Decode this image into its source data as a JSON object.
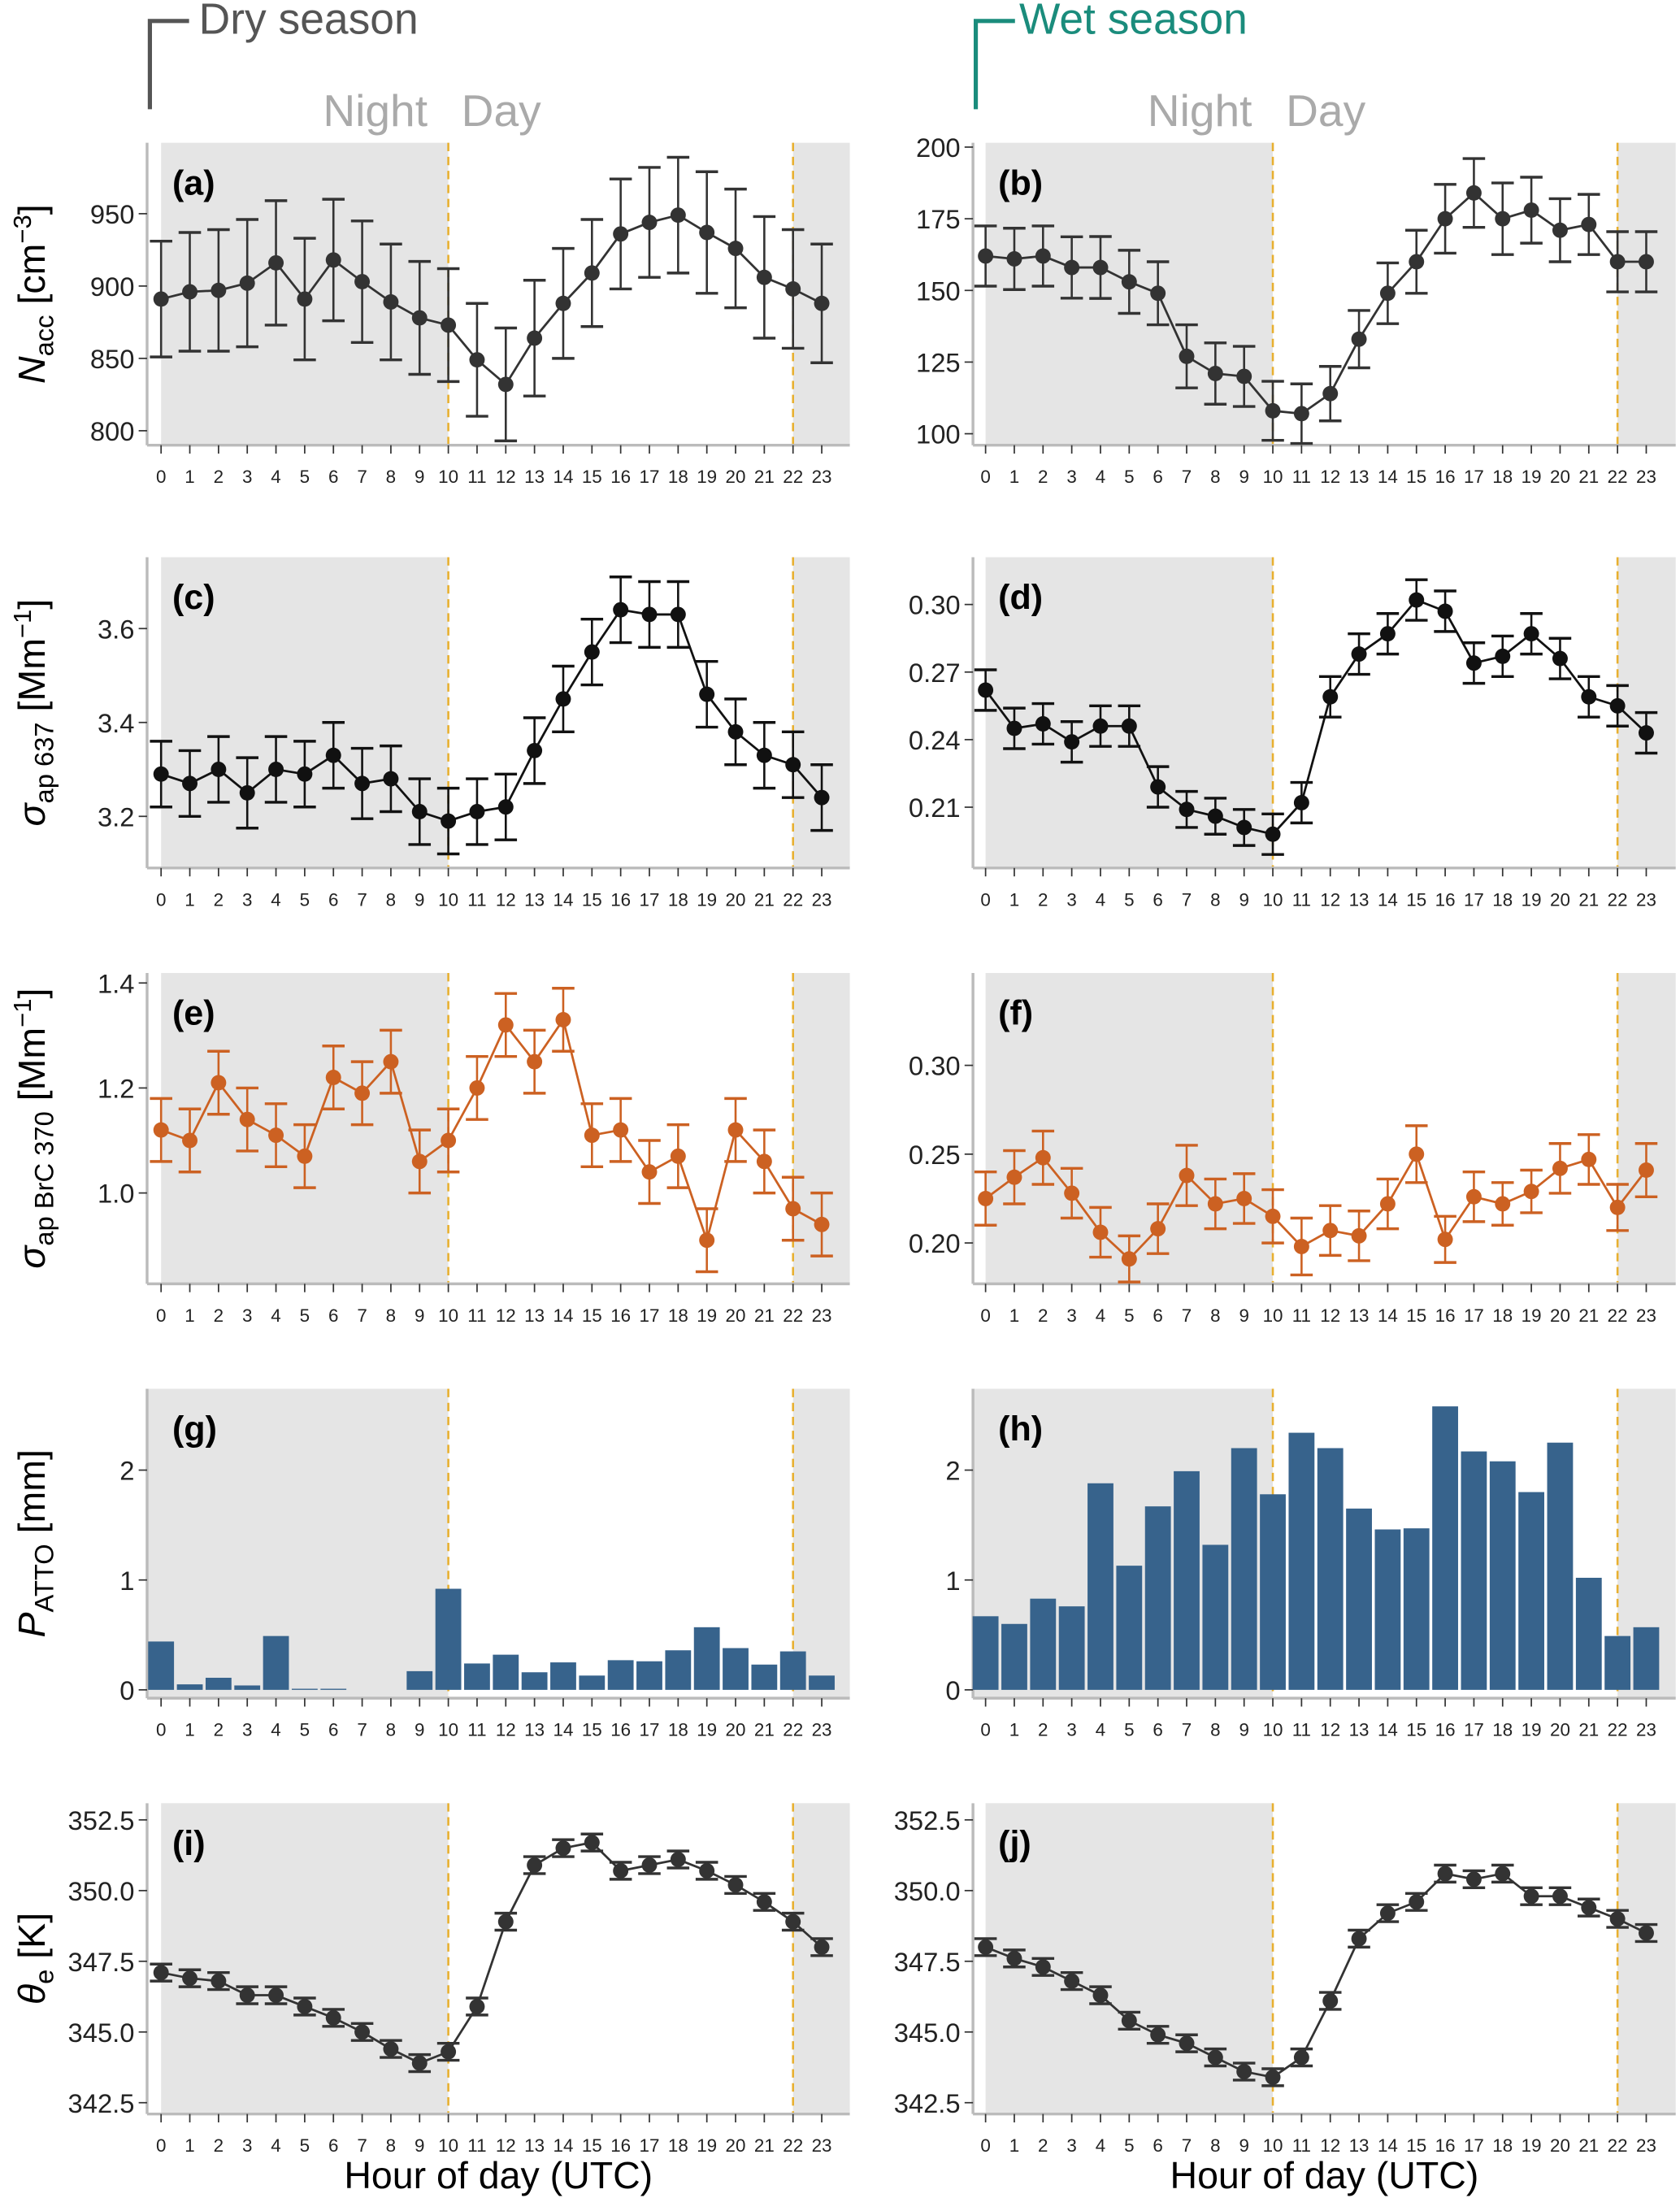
{
  "header": {
    "dry": "Dry season",
    "wet": "Wet season",
    "night": "Night",
    "day": "Day",
    "dry_color": "#555555",
    "wet_color": "#1a8c7c"
  },
  "xlabel": "Hour of day (UTC)",
  "chart_data": [
    {
      "id": "a",
      "label": "(a)",
      "type": "line",
      "column": "dry",
      "row": 0,
      "color": "#333333",
      "ylim": [
        790,
        999
      ],
      "yticks": [
        "800",
        "850",
        "900",
        "950"
      ],
      "ylabel": {
        "main": "N",
        "sub": "acc",
        "unit": " [cm",
        "sup": "−3",
        "end": "]"
      },
      "x": [
        0,
        1,
        2,
        3,
        4,
        5,
        6,
        7,
        8,
        9,
        10,
        11,
        12,
        13,
        14,
        15,
        16,
        17,
        18,
        19,
        20,
        21,
        22,
        23
      ],
      "values": [
        891,
        896,
        897,
        902,
        916,
        891,
        918,
        903,
        889,
        878,
        873,
        849,
        832,
        864,
        888,
        909,
        936,
        944,
        949,
        937,
        926,
        906,
        898,
        888
      ],
      "errors": [
        40,
        41,
        42,
        44,
        43,
        42,
        42,
        42,
        40,
        39,
        39,
        39,
        39,
        40,
        38,
        37,
        38,
        38,
        40,
        42,
        41,
        42,
        41,
        41
      ]
    },
    {
      "id": "b",
      "label": "(b)",
      "type": "line",
      "column": "wet",
      "row": 0,
      "color": "#333333",
      "ylim": [
        96,
        201.5
      ],
      "yticks": [
        "100",
        "125",
        "150",
        "175",
        "200"
      ],
      "values": [
        162,
        161,
        162,
        158,
        158,
        153,
        149,
        127,
        121,
        120,
        108,
        107,
        114,
        133,
        149,
        160,
        175,
        184,
        175,
        178,
        171,
        173,
        160,
        160
      ],
      "errors": [
        10.5,
        10.7,
        10.5,
        10.7,
        10.8,
        11,
        11,
        11,
        10.7,
        10.5,
        10.3,
        10.4,
        9.5,
        10,
        10.6,
        11,
        12,
        12,
        12.5,
        11.5,
        11,
        10.5,
        10.5,
        10.5
      ]
    },
    {
      "id": "c",
      "label": "(c)",
      "type": "line",
      "column": "dry",
      "row": 1,
      "color": "#111111",
      "ylim": [
        3.09,
        3.752
      ],
      "yticks": [
        "3.2",
        "3.4",
        "3.6"
      ],
      "ylabel": {
        "main": "σ",
        "sub": "ap 637",
        "unit": " [Mm",
        "sup": "−1",
        "end": "]"
      },
      "values": [
        3.29,
        3.27,
        3.3,
        3.25,
        3.3,
        3.29,
        3.33,
        3.27,
        3.28,
        3.21,
        3.19,
        3.21,
        3.22,
        3.34,
        3.45,
        3.55,
        3.64,
        3.63,
        3.63,
        3.46,
        3.38,
        3.33,
        3.31,
        3.24
      ],
      "errors": [
        0.07,
        0.07,
        0.07,
        0.075,
        0.07,
        0.07,
        0.07,
        0.075,
        0.07,
        0.07,
        0.07,
        0.07,
        0.07,
        0.07,
        0.07,
        0.07,
        0.07,
        0.07,
        0.07,
        0.07,
        0.07,
        0.07,
        0.07,
        0.07
      ]
    },
    {
      "id": "d",
      "label": "(d)",
      "type": "line",
      "column": "wet",
      "row": 1,
      "color": "#111111",
      "ylim": [
        0.183,
        0.321
      ],
      "yticks": [
        "0.21",
        "0.24",
        "0.27",
        "0.30"
      ],
      "values": [
        0.262,
        0.245,
        0.247,
        0.239,
        0.246,
        0.246,
        0.219,
        0.209,
        0.206,
        0.201,
        0.198,
        0.212,
        0.259,
        0.278,
        0.287,
        0.302,
        0.297,
        0.274,
        0.277,
        0.287,
        0.276,
        0.259,
        0.255,
        0.243
      ],
      "errors": [
        0.009,
        0.009,
        0.009,
        0.009,
        0.009,
        0.009,
        0.009,
        0.008,
        0.008,
        0.008,
        0.009,
        0.009,
        0.009,
        0.009,
        0.009,
        0.009,
        0.009,
        0.009,
        0.009,
        0.009,
        0.009,
        0.009,
        0.009,
        0.009
      ]
    },
    {
      "id": "e",
      "label": "(e)",
      "type": "line",
      "column": "dry",
      "row": 2,
      "color": "#cc6122",
      "ylim": [
        0.827,
        1.419
      ],
      "yticks": [
        "1.0",
        "1.2",
        "1.4"
      ],
      "ylabel": {
        "main": "σ",
        "sub": "ap BrC 370",
        "unit": " [Mm",
        "sup": "−1",
        "end": "]"
      },
      "values": [
        1.12,
        1.1,
        1.21,
        1.14,
        1.11,
        1.07,
        1.22,
        1.19,
        1.25,
        1.06,
        1.1,
        1.2,
        1.32,
        1.25,
        1.33,
        1.11,
        1.12,
        1.04,
        1.07,
        0.91,
        1.12,
        1.06,
        0.97,
        0.94
      ],
      "errors": [
        0.06,
        0.06,
        0.06,
        0.06,
        0.06,
        0.06,
        0.06,
        0.06,
        0.06,
        0.06,
        0.06,
        0.06,
        0.06,
        0.06,
        0.06,
        0.06,
        0.06,
        0.06,
        0.06,
        0.06,
        0.06,
        0.06,
        0.06,
        0.06
      ]
    },
    {
      "id": "f",
      "label": "(f)",
      "type": "line",
      "column": "wet",
      "row": 2,
      "color": "#cc6122",
      "ylim": [
        0.177,
        0.352
      ],
      "yticks": [
        "0.20",
        "0.25",
        "0.30"
      ],
      "values": [
        0.225,
        0.237,
        0.248,
        0.228,
        0.206,
        0.191,
        0.208,
        0.238,
        0.222,
        0.225,
        0.215,
        0.198,
        0.207,
        0.204,
        0.222,
        0.25,
        0.202,
        0.226,
        0.222,
        0.229,
        0.242,
        0.247,
        0.22,
        0.241
      ],
      "errors": [
        0.015,
        0.015,
        0.015,
        0.014,
        0.014,
        0.013,
        0.014,
        0.017,
        0.014,
        0.014,
        0.015,
        0.016,
        0.014,
        0.014,
        0.014,
        0.016,
        0.013,
        0.014,
        0.012,
        0.012,
        0.014,
        0.014,
        0.013,
        0.015
      ]
    },
    {
      "id": "g",
      "label": "(g)",
      "type": "bar",
      "column": "dry",
      "row": 3,
      "color": "#37638c",
      "ylim": [
        -0.076,
        2.74
      ],
      "yticks": [
        "0",
        "1",
        "2"
      ],
      "ylabel": {
        "main": "P",
        "sub": "ATTO",
        "unit": " [mm]",
        "sup": "",
        "end": ""
      },
      "values": [
        0.44,
        0.05,
        0.11,
        0.04,
        0.49,
        0.01,
        0.01,
        0,
        0,
        0.17,
        0.92,
        0.24,
        0.32,
        0.16,
        0.25,
        0.13,
        0.27,
        0.26,
        0.36,
        0.57,
        0.38,
        0.23,
        0.35,
        0.13
      ]
    },
    {
      "id": "h",
      "label": "(h)",
      "type": "bar",
      "column": "wet",
      "row": 3,
      "color": "#37638c",
      "ylim": [
        -0.076,
        2.74
      ],
      "yticks": [
        "0",
        "1",
        "2"
      ],
      "values": [
        0.67,
        0.6,
        0.83,
        0.76,
        1.88,
        1.13,
        1.67,
        1.99,
        1.32,
        2.2,
        1.78,
        2.34,
        2.2,
        1.65,
        1.46,
        1.47,
        2.58,
        2.17,
        2.08,
        1.8,
        2.25,
        1.02,
        0.49,
        0.57
      ]
    },
    {
      "id": "i",
      "label": "(i)",
      "type": "line",
      "column": "dry",
      "row": 4,
      "color": "#333333",
      "ylim": [
        342.1,
        353.09
      ],
      "yticks": [
        "342.5",
        "345.0",
        "347.5",
        "350.0",
        "352.5"
      ],
      "ylabel": {
        "main": "θ",
        "sub": "e",
        "unit": " [K]",
        "sup": "",
        "end": ""
      },
      "values": [
        347.1,
        346.9,
        346.8,
        346.3,
        346.3,
        345.9,
        345.5,
        345.0,
        344.4,
        343.9,
        344.3,
        345.9,
        348.9,
        350.9,
        351.5,
        351.7,
        350.7,
        350.9,
        351.1,
        350.7,
        350.2,
        349.6,
        348.9,
        348.0
      ],
      "errors": [
        0.3,
        0.3,
        0.3,
        0.3,
        0.3,
        0.3,
        0.3,
        0.3,
        0.3,
        0.3,
        0.3,
        0.3,
        0.3,
        0.3,
        0.3,
        0.3,
        0.3,
        0.3,
        0.3,
        0.3,
        0.3,
        0.3,
        0.3,
        0.3
      ]
    },
    {
      "id": "j",
      "label": "(j)",
      "type": "line",
      "column": "wet",
      "row": 4,
      "color": "#333333",
      "ylim": [
        342.1,
        353.09
      ],
      "yticks": [
        "342.5",
        "345.0",
        "347.5",
        "350.0",
        "352.5"
      ],
      "values": [
        348.0,
        347.6,
        347.3,
        346.8,
        346.3,
        345.4,
        344.9,
        344.6,
        344.1,
        343.6,
        343.4,
        344.1,
        346.1,
        348.3,
        349.2,
        349.6,
        350.6,
        350.4,
        350.6,
        349.8,
        349.8,
        349.4,
        349.0,
        348.5
      ],
      "errors": [
        0.3,
        0.3,
        0.3,
        0.3,
        0.3,
        0.3,
        0.3,
        0.3,
        0.3,
        0.3,
        0.3,
        0.3,
        0.3,
        0.3,
        0.3,
        0.3,
        0.3,
        0.3,
        0.3,
        0.3,
        0.3,
        0.3,
        0.3,
        0.3
      ]
    }
  ],
  "xticks": [
    "0",
    "1",
    "2",
    "3",
    "4",
    "5",
    "6",
    "7",
    "8",
    "9",
    "10",
    "11",
    "12",
    "13",
    "14",
    "15",
    "16",
    "17",
    "18",
    "19",
    "20",
    "21",
    "22",
    "23"
  ],
  "night_day_boundaries": [
    10,
    22
  ]
}
